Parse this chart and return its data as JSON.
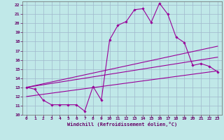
{
  "xlabel": "Windchill (Refroidissement éolien,°C)",
  "xlim": [
    -0.5,
    23.5
  ],
  "ylim": [
    10,
    22.4
  ],
  "yticks": [
    10,
    11,
    12,
    13,
    14,
    15,
    16,
    17,
    18,
    19,
    20,
    21,
    22
  ],
  "xticks": [
    0,
    1,
    2,
    3,
    4,
    5,
    6,
    7,
    8,
    9,
    10,
    11,
    12,
    13,
    14,
    15,
    16,
    17,
    18,
    19,
    20,
    21,
    22,
    23
  ],
  "bg_color": "#c0e8e8",
  "grid_color": "#a0b8cc",
  "line_color": "#990099",
  "tick_color": "#660066",
  "series1_x": [
    0,
    1,
    2,
    3,
    4,
    5,
    6,
    7,
    8,
    9,
    10,
    11,
    12,
    13,
    14,
    15,
    16,
    17,
    18,
    19,
    20,
    21,
    22,
    23
  ],
  "series1_y": [
    13.0,
    12.8,
    11.6,
    11.1,
    11.1,
    11.1,
    11.1,
    10.4,
    13.1,
    11.6,
    18.2,
    19.8,
    20.2,
    21.5,
    21.6,
    20.1,
    22.2,
    21.0,
    18.5,
    17.9,
    15.4,
    15.6,
    15.3,
    14.7
  ],
  "series2_x": [
    0,
    23
  ],
  "series2_y": [
    13.0,
    17.5
  ],
  "series3_x": [
    0,
    23
  ],
  "series3_y": [
    12.0,
    14.8
  ],
  "series4_x": [
    0,
    23
  ],
  "series4_y": [
    13.0,
    16.3
  ]
}
